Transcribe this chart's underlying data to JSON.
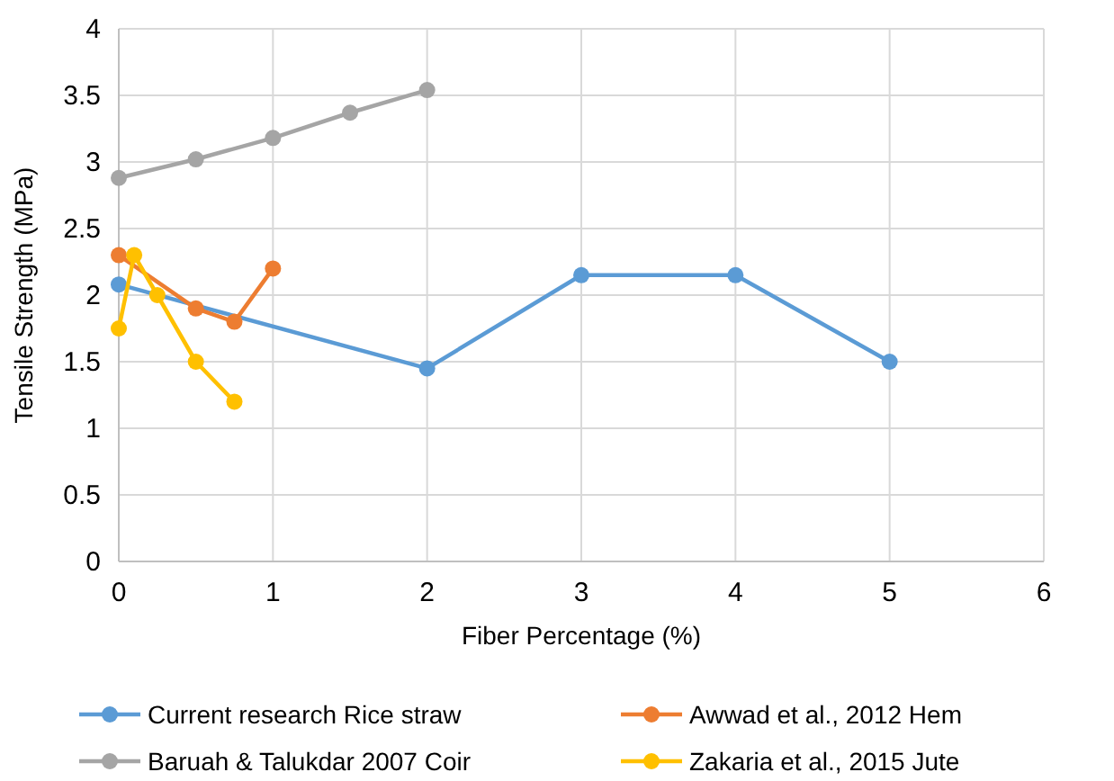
{
  "chart_data": {
    "type": "line",
    "xlabel": "Fiber Percentage (%)",
    "ylabel": "Tensile Strength (MPa)",
    "xlim": [
      0,
      6
    ],
    "xticks": [
      0,
      1,
      2,
      3,
      4,
      5,
      6
    ],
    "ylim": [
      0,
      4
    ],
    "yticks": [
      0,
      0.5,
      1,
      1.5,
      2,
      2.5,
      3,
      3.5,
      4
    ],
    "grid": true,
    "legend": "bottom",
    "marker": "circle",
    "line_style": "solid",
    "series": [
      {
        "name": "Current research Rice straw",
        "color": "#5b9bd5",
        "x": [
          0,
          2,
          3,
          4,
          5
        ],
        "values": [
          2.08,
          1.45,
          2.15,
          2.15,
          1.5
        ]
      },
      {
        "name": "Awwad et al., 2012 Hem",
        "color": "#ed7d31",
        "x": [
          0,
          0.5,
          0.75,
          1
        ],
        "values": [
          2.3,
          1.9,
          1.8,
          2.2
        ]
      },
      {
        "name": "Baruah & Talukdar 2007 Coir",
        "color": "#a5a5a5",
        "x": [
          0,
          0.5,
          1,
          1.5,
          2
        ],
        "values": [
          2.88,
          3.02,
          3.18,
          3.37,
          3.54
        ]
      },
      {
        "name": "Zakaria et al., 2015 Jute",
        "color": "#ffc000",
        "x": [
          0,
          0.1,
          0.25,
          0.5,
          0.75
        ],
        "values": [
          1.75,
          2.3,
          2.0,
          1.5,
          1.2
        ]
      }
    ]
  }
}
